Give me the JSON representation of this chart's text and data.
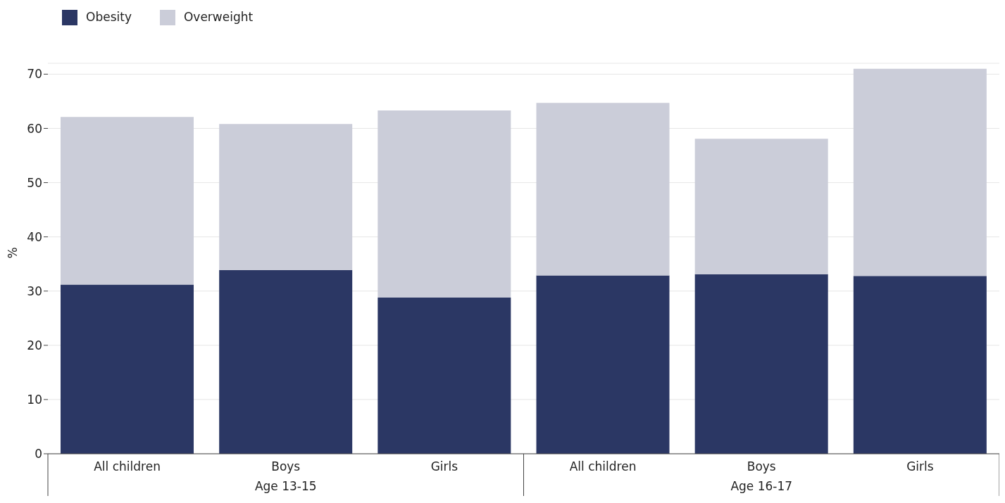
{
  "chart_data": {
    "type": "bar",
    "stacked": true,
    "ylabel": "%",
    "categories": [
      "All children",
      "Boys",
      "Girls",
      "All children",
      "Boys",
      "Girls"
    ],
    "series": [
      {
        "name": "Obesity",
        "color": "#2b3764",
        "values": [
          31.2,
          33.9,
          28.8,
          32.9,
          33.1,
          32.8
        ]
      },
      {
        "name": "Overweight",
        "color": "#cbcdd9",
        "values": [
          30.9,
          26.9,
          34.5,
          31.8,
          25.0,
          38.2
        ]
      }
    ],
    "annotations": [
      "Age 13-15",
      "Age 16-17"
    ],
    "ylim": [
      0,
      72
    ],
    "yticks": [
      0,
      10,
      20,
      30,
      40,
      50,
      60,
      70
    ],
    "grid": "y",
    "legend": "top left"
  }
}
